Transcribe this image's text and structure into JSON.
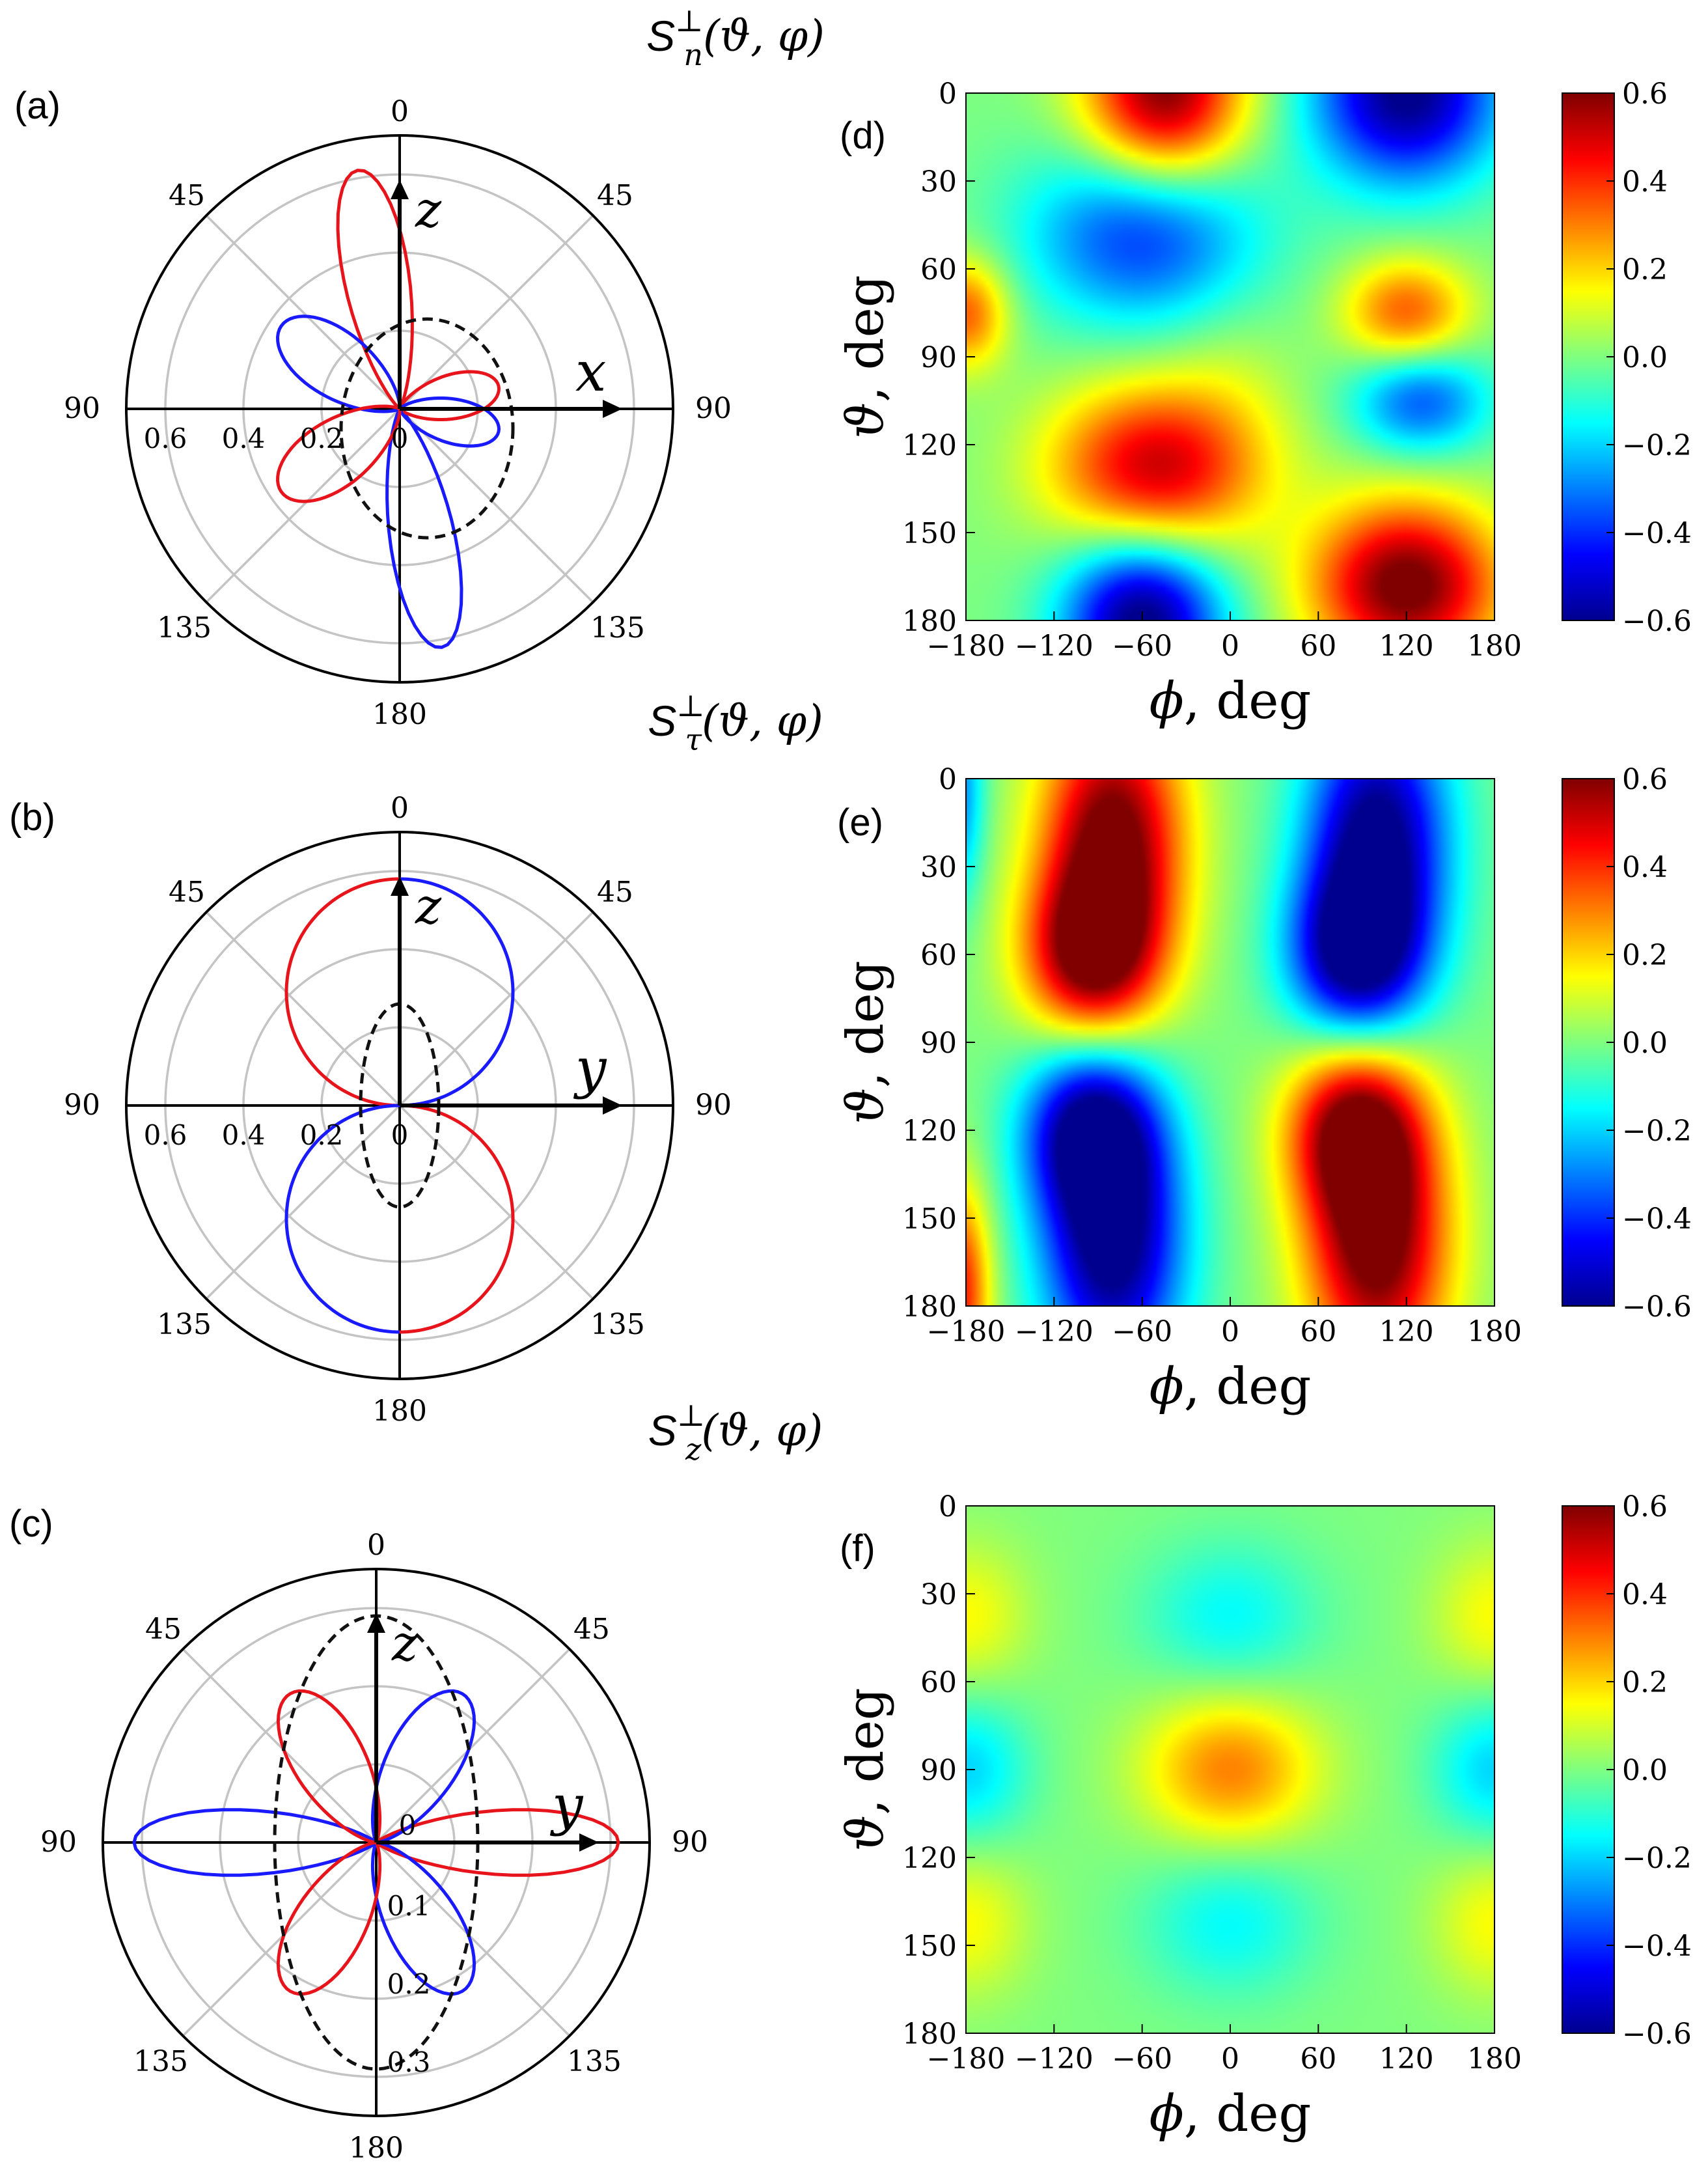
{
  "colors": {
    "pos_lobe": "#e8141c",
    "neg_lobe": "#1a1aff",
    "dashed": "#111111",
    "grid": "#c4c4c4",
    "axis": "#000000"
  },
  "colormap": {
    "stops": [
      [
        0,
        "#00008f"
      ],
      [
        0.125,
        "#0000ff"
      ],
      [
        0.375,
        "#00ffff"
      ],
      [
        0.5,
        "#7fff7f"
      ],
      [
        0.625,
        "#ffff00"
      ],
      [
        0.875,
        "#ff0000"
      ],
      [
        1,
        "#800000"
      ]
    ],
    "range": [
      -0.6,
      0.6
    ],
    "tick_labels": [
      "0.6",
      "0.4",
      "0.2",
      "0.0",
      "−0.2",
      "−0.4",
      "−0.6"
    ],
    "tick_values": [
      0.6,
      0.4,
      0.2,
      0.0,
      -0.2,
      -0.4,
      -0.6
    ]
  },
  "chart_data": [
    {
      "type": "polar",
      "panel": "(a)",
      "title": {
        "base": "S",
        "sub": "n",
        "sup": "⊥",
        "args": "(ϑ, φ)"
      },
      "axis_labels": {
        "vertical": "z",
        "horizontal": "x"
      },
      "angle_labels": {
        "top": "0",
        "upper_left": "45",
        "upper_right": "45",
        "left": "90",
        "right": "90",
        "lower_left": "135",
        "lower_right": "135",
        "bottom": "180"
      },
      "r_max": 0.7,
      "r_ticks": [
        0.2,
        0.4,
        0.6
      ],
      "radial_tick_labels": [
        "0.6",
        "0.4",
        "0.2",
        "0"
      ],
      "radial_tick_values": [
        -0.6,
        -0.4,
        -0.2,
        0
      ],
      "lobes": [
        {
          "color": "pos",
          "direction_deg": -10,
          "length": 0.62,
          "width": 0.28
        },
        {
          "color": "neg",
          "direction_deg": 170,
          "length": 0.62,
          "width": 0.28
        },
        {
          "color": "pos",
          "direction_deg": 77,
          "length": 0.26,
          "width": 0.2
        },
        {
          "color": "neg",
          "direction_deg": 103,
          "length": 0.26,
          "width": 0.2
        },
        {
          "color": "neg",
          "direction_deg": -55,
          "length": 0.37,
          "width": 0.3
        },
        {
          "color": "pos",
          "direction_deg": -125,
          "length": 0.37,
          "width": 0.3
        }
      ],
      "dashed_ellipse": {
        "center": [
          0.07,
          -0.05
        ],
        "semi_x": 0.22,
        "semi_z": 0.28
      }
    },
    {
      "type": "polar",
      "panel": "(b)",
      "title": {
        "base": "S",
        "sub": "τ",
        "sup": "⊥",
        "args": "(ϑ, φ)"
      },
      "axis_labels": {
        "vertical": "z",
        "horizontal": "y"
      },
      "angle_labels": {
        "top": "0",
        "upper_left": "45",
        "upper_right": "45",
        "left": "90",
        "right": "90",
        "lower_left": "135",
        "lower_right": "135",
        "bottom": "180"
      },
      "r_max": 0.7,
      "r_ticks": [
        0.2,
        0.4,
        0.6
      ],
      "radial_tick_labels": [
        "0.6",
        "0.4",
        "0.2",
        "0"
      ],
      "radial_tick_values": [
        -0.6,
        -0.4,
        -0.2,
        0
      ],
      "pattern": "cos2",
      "amplitude": 0.58,
      "dashed_ellipse": {
        "center": [
          0,
          0
        ],
        "semi_x": 0.1,
        "semi_z": 0.26
      }
    },
    {
      "type": "polar",
      "panel": "(c)",
      "title": {
        "base": "S",
        "sub": "z",
        "sup": "⊥",
        "args": "(ϑ, φ)"
      },
      "axis_labels": {
        "vertical": "z",
        "horizontal": "y"
      },
      "angle_labels": {
        "top": "0",
        "upper_left": "45",
        "upper_right": "45",
        "left": "90",
        "right": "90",
        "lower_left": "135",
        "lower_right": "135",
        "bottom": "180"
      },
      "r_max": 0.35,
      "r_ticks": [
        0.1,
        0.2,
        0.3
      ],
      "radial_tick_labels": [
        "0",
        "0.1",
        "0.2",
        "0.3"
      ],
      "radial_tick_values": [
        0,
        0.1,
        0.2,
        0.3
      ],
      "lobes": [
        {
          "color": "neg",
          "direction_deg": -90,
          "length": 0.31,
          "width": 0.14
        },
        {
          "color": "pos",
          "direction_deg": 90,
          "length": 0.31,
          "width": 0.14
        },
        {
          "color": "neg",
          "direction_deg": 30,
          "length": 0.22,
          "width": 0.16
        },
        {
          "color": "pos",
          "direction_deg": -30,
          "length": 0.22,
          "width": 0.16
        },
        {
          "color": "neg",
          "direction_deg": 150,
          "length": 0.22,
          "width": 0.16
        },
        {
          "color": "pos",
          "direction_deg": -150,
          "length": 0.22,
          "width": 0.16
        }
      ],
      "dashed_ellipse": {
        "center": [
          0,
          0
        ],
        "semi_x": 0.13,
        "semi_z": 0.29
      }
    },
    {
      "type": "heatmap",
      "panel": "(d)",
      "xlabel_sym": "ϕ",
      "xlabel_unit": ", deg",
      "ylabel_sym": "ϑ",
      "ylabel_unit": ", deg",
      "x_range": [
        -180,
        180
      ],
      "y_range": [
        0,
        180
      ],
      "x_ticks": [
        -180,
        -120,
        -60,
        0,
        60,
        120,
        180
      ],
      "x_tick_labels": [
        "−180",
        "−120",
        "−60",
        "0",
        "60",
        "120",
        "180"
      ],
      "y_ticks": [
        0,
        30,
        60,
        90,
        120,
        150,
        180
      ],
      "y_tick_labels": [
        "0",
        "30",
        "60",
        "90",
        "120",
        "150",
        "180"
      ],
      "field": [
        {
          "phi": -45,
          "theta": 0,
          "amp": 0.62,
          "s_phi": 38,
          "s_theta": 22
        },
        {
          "phi": 120,
          "theta": 0,
          "amp": -0.62,
          "s_phi": 45,
          "s_theta": 22
        },
        {
          "phi": -60,
          "theta": 48,
          "amp": -0.4,
          "s_phi": 55,
          "s_theta": 22
        },
        {
          "phi": 120,
          "theta": 75,
          "amp": 0.35,
          "s_phi": 30,
          "s_theta": 13
        },
        {
          "phi": -180,
          "theta": 75,
          "amp": 0.35,
          "s_phi": 20,
          "s_theta": 13
        },
        {
          "phi": 130,
          "theta": 105,
          "amp": -0.35,
          "s_phi": 33,
          "s_theta": 13
        },
        {
          "phi": -50,
          "theta": 128,
          "amp": 0.52,
          "s_phi": 50,
          "s_theta": 20
        },
        {
          "phi": 120,
          "theta": 168,
          "amp": 0.64,
          "s_phi": 45,
          "s_theta": 20
        },
        {
          "phi": -60,
          "theta": 180,
          "amp": -0.64,
          "s_phi": 38,
          "s_theta": 20
        },
        {
          "phi": 0,
          "theta": 95,
          "amp": 0.05,
          "s_phi": 30,
          "s_theta": 20
        }
      ]
    },
    {
      "type": "heatmap",
      "panel": "(e)",
      "xlabel_sym": "ϕ",
      "xlabel_unit": ", deg",
      "ylabel_sym": "ϑ",
      "ylabel_unit": ", deg",
      "x_range": [
        -180,
        180
      ],
      "y_range": [
        0,
        180
      ],
      "x_ticks": [
        -180,
        -120,
        -60,
        0,
        60,
        120,
        180
      ],
      "x_tick_labels": [
        "−180",
        "−120",
        "−60",
        "0",
        "60",
        "120",
        "180"
      ],
      "y_ticks": [
        0,
        30,
        60,
        90,
        120,
        150,
        180
      ],
      "y_tick_labels": [
        "0",
        "30",
        "60",
        "90",
        "120",
        "150",
        "180"
      ],
      "field": [
        {
          "phi": -80,
          "theta": 20,
          "amp": 0.64,
          "s_phi": 34,
          "s_theta": 32
        },
        {
          "phi": -95,
          "theta": 60,
          "amp": 0.55,
          "s_phi": 32,
          "s_theta": 20
        },
        {
          "phi": 100,
          "theta": 20,
          "amp": -0.64,
          "s_phi": 34,
          "s_theta": 32
        },
        {
          "phi": 85,
          "theta": 60,
          "amp": -0.55,
          "s_phi": 32,
          "s_theta": 20
        },
        {
          "phi": -80,
          "theta": 160,
          "amp": -0.64,
          "s_phi": 34,
          "s_theta": 32
        },
        {
          "phi": -95,
          "theta": 120,
          "amp": -0.55,
          "s_phi": 32,
          "s_theta": 20
        },
        {
          "phi": 100,
          "theta": 160,
          "amp": 0.64,
          "s_phi": 34,
          "s_theta": 32
        },
        {
          "phi": 85,
          "theta": 120,
          "amp": 0.55,
          "s_phi": 32,
          "s_theta": 20
        },
        {
          "phi": -185,
          "theta": 175,
          "amp": 0.45,
          "s_phi": 15,
          "s_theta": 25
        },
        {
          "phi": -185,
          "theta": 5,
          "amp": -0.3,
          "s_phi": 12,
          "s_theta": 25
        }
      ]
    },
    {
      "type": "heatmap",
      "panel": "(f)",
      "xlabel_sym": "ϕ",
      "xlabel_unit": ", deg",
      "ylabel_sym": "ϑ",
      "ylabel_unit": ", deg",
      "x_range": [
        -180,
        180
      ],
      "y_range": [
        0,
        180
      ],
      "x_ticks": [
        -180,
        -120,
        -60,
        0,
        60,
        120,
        180
      ],
      "x_tick_labels": [
        "−180",
        "−120",
        "−60",
        "0",
        "60",
        "120",
        "180"
      ],
      "y_ticks": [
        0,
        30,
        60,
        90,
        120,
        150,
        180
      ],
      "y_tick_labels": [
        "0",
        "30",
        "60",
        "90",
        "120",
        "150",
        "180"
      ],
      "field": [
        {
          "phi": 0,
          "theta": 90,
          "amp": 0.3,
          "s_phi": 42,
          "s_theta": 18
        },
        {
          "phi": 0,
          "theta": 38,
          "amp": -0.15,
          "s_phi": 42,
          "s_theta": 18
        },
        {
          "phi": 0,
          "theta": 142,
          "amp": -0.15,
          "s_phi": 42,
          "s_theta": 18
        },
        {
          "phi": -180,
          "theta": 90,
          "amp": -0.2,
          "s_phi": 30,
          "s_theta": 18
        },
        {
          "phi": 180,
          "theta": 90,
          "amp": -0.2,
          "s_phi": 30,
          "s_theta": 18
        },
        {
          "phi": -180,
          "theta": 38,
          "amp": 0.15,
          "s_phi": 30,
          "s_theta": 18
        },
        {
          "phi": 180,
          "theta": 38,
          "amp": 0.15,
          "s_phi": 30,
          "s_theta": 18
        },
        {
          "phi": -180,
          "theta": 142,
          "amp": 0.15,
          "s_phi": 30,
          "s_theta": 18
        },
        {
          "phi": 180,
          "theta": 142,
          "amp": 0.15,
          "s_phi": 30,
          "s_theta": 18
        }
      ]
    }
  ]
}
